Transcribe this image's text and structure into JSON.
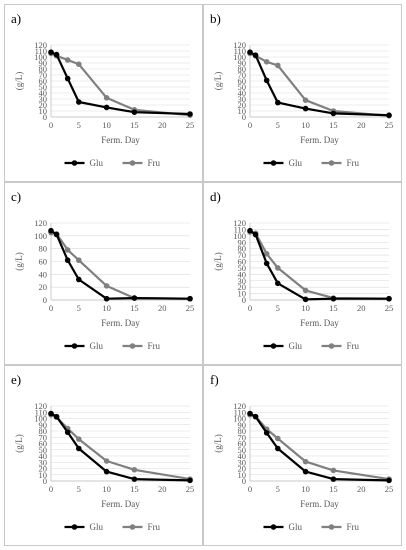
{
  "figure": {
    "style": {
      "glu_color": "#000000",
      "fru_color": "#808080",
      "grid_color": "#d9d9d9",
      "border_color": "#c9c9c9"
    }
  },
  "chart_data": [
    {
      "type": "line",
      "panel_label": "a)",
      "xlabel": "Ferm. Day",
      "ylabel": "(g/L)",
      "xlim": [
        0,
        25
      ],
      "ylim": [
        0,
        120
      ],
      "xticks": [
        0,
        5,
        10,
        15,
        20,
        25
      ],
      "yticks": [
        0,
        10,
        20,
        30,
        40,
        50,
        60,
        70,
        80,
        90,
        100,
        110,
        120
      ],
      "grid": "horizontal",
      "legend_position": "bottom",
      "series": [
        {
          "name": "Glu",
          "x": [
            0,
            1,
            3,
            5,
            10,
            15,
            25
          ],
          "y": [
            108,
            104,
            64,
            25,
            16,
            8,
            5
          ]
        },
        {
          "name": "Fru",
          "x": [
            0,
            1,
            3,
            5,
            10,
            15,
            25
          ],
          "y": [
            106,
            102,
            95,
            88,
            32,
            12,
            3
          ]
        }
      ]
    },
    {
      "type": "line",
      "panel_label": "b)",
      "xlabel": "Ferm. Day",
      "ylabel": "(g/L)",
      "xlim": [
        0,
        25
      ],
      "ylim": [
        0,
        120
      ],
      "xticks": [
        0,
        5,
        10,
        15,
        20,
        25
      ],
      "yticks": [
        0,
        10,
        20,
        30,
        40,
        50,
        60,
        70,
        80,
        90,
        100,
        110,
        120
      ],
      "grid": "horizontal",
      "legend_position": "bottom",
      "series": [
        {
          "name": "Glu",
          "x": [
            0,
            1,
            3,
            5,
            10,
            15,
            25
          ],
          "y": [
            108,
            103,
            61,
            24,
            14,
            6,
            3
          ]
        },
        {
          "name": "Fru",
          "x": [
            0,
            1,
            3,
            5,
            10,
            15,
            25
          ],
          "y": [
            106,
            102,
            92,
            86,
            28,
            10,
            2
          ]
        }
      ]
    },
    {
      "type": "line",
      "panel_label": "c)",
      "xlabel": "Ferm. Day",
      "ylabel": "(g/L)",
      "xlim": [
        0,
        25
      ],
      "ylim": [
        0,
        120
      ],
      "xticks": [
        0,
        5,
        10,
        15,
        20,
        25
      ],
      "yticks": [
        0,
        20,
        40,
        60,
        80,
        100,
        120
      ],
      "grid": "horizontal",
      "legend_position": "bottom",
      "series": [
        {
          "name": "Glu",
          "x": [
            0,
            1,
            3,
            5,
            10,
            15,
            25
          ],
          "y": [
            108,
            102,
            62,
            32,
            2,
            3,
            2
          ]
        },
        {
          "name": "Fru",
          "x": [
            0,
            1,
            3,
            5,
            10,
            15,
            25
          ],
          "y": [
            105,
            103,
            78,
            62,
            22,
            3,
            2
          ]
        }
      ]
    },
    {
      "type": "line",
      "panel_label": "d)",
      "xlabel": "Ferm. Day",
      "ylabel": "(g/L)",
      "xlim": [
        0,
        25
      ],
      "ylim": [
        0,
        120
      ],
      "xticks": [
        0,
        5,
        10,
        15,
        20,
        25
      ],
      "yticks": [
        0,
        10,
        20,
        30,
        40,
        50,
        60,
        70,
        80,
        90,
        100,
        110,
        120
      ],
      "grid": "horizontal",
      "legend_position": "bottom",
      "series": [
        {
          "name": "Glu",
          "x": [
            0,
            1,
            3,
            5,
            10,
            15,
            25
          ],
          "y": [
            108,
            102,
            57,
            26,
            1,
            2,
            2
          ]
        },
        {
          "name": "Fru",
          "x": [
            0,
            1,
            3,
            5,
            10,
            15,
            25
          ],
          "y": [
            106,
            104,
            72,
            50,
            15,
            3,
            2
          ]
        }
      ]
    },
    {
      "type": "line",
      "panel_label": "e)",
      "xlabel": "Ferm. Day",
      "ylabel": "(g/L)",
      "xlim": [
        0,
        25
      ],
      "ylim": [
        0,
        120
      ],
      "xticks": [
        0,
        5,
        10,
        15,
        20,
        25
      ],
      "yticks": [
        0,
        10,
        20,
        30,
        40,
        50,
        60,
        70,
        80,
        90,
        100,
        110,
        120
      ],
      "grid": "horizontal",
      "legend_position": "bottom",
      "series": [
        {
          "name": "Glu",
          "x": [
            0,
            1,
            3,
            5,
            10,
            15,
            25
          ],
          "y": [
            108,
            103,
            78,
            52,
            15,
            3,
            1
          ]
        },
        {
          "name": "Fru",
          "x": [
            0,
            1,
            3,
            5,
            10,
            15,
            25
          ],
          "y": [
            106,
            102,
            84,
            67,
            32,
            18,
            3
          ]
        }
      ]
    },
    {
      "type": "line",
      "panel_label": "f)",
      "xlabel": "Ferm. Day",
      "ylabel": "(g/L)",
      "xlim": [
        0,
        25
      ],
      "ylim": [
        0,
        120
      ],
      "xticks": [
        0,
        5,
        10,
        15,
        20,
        25
      ],
      "yticks": [
        0,
        10,
        20,
        30,
        40,
        50,
        60,
        70,
        80,
        90,
        100,
        110,
        120
      ],
      "grid": "horizontal",
      "legend_position": "bottom",
      "series": [
        {
          "name": "Glu",
          "x": [
            0,
            1,
            3,
            5,
            10,
            15,
            25
          ],
          "y": [
            108,
            103,
            77,
            52,
            15,
            3,
            1
          ]
        },
        {
          "name": "Fru",
          "x": [
            0,
            1,
            3,
            5,
            10,
            15,
            25
          ],
          "y": [
            106,
            103,
            83,
            68,
            31,
            17,
            3
          ]
        }
      ]
    }
  ]
}
